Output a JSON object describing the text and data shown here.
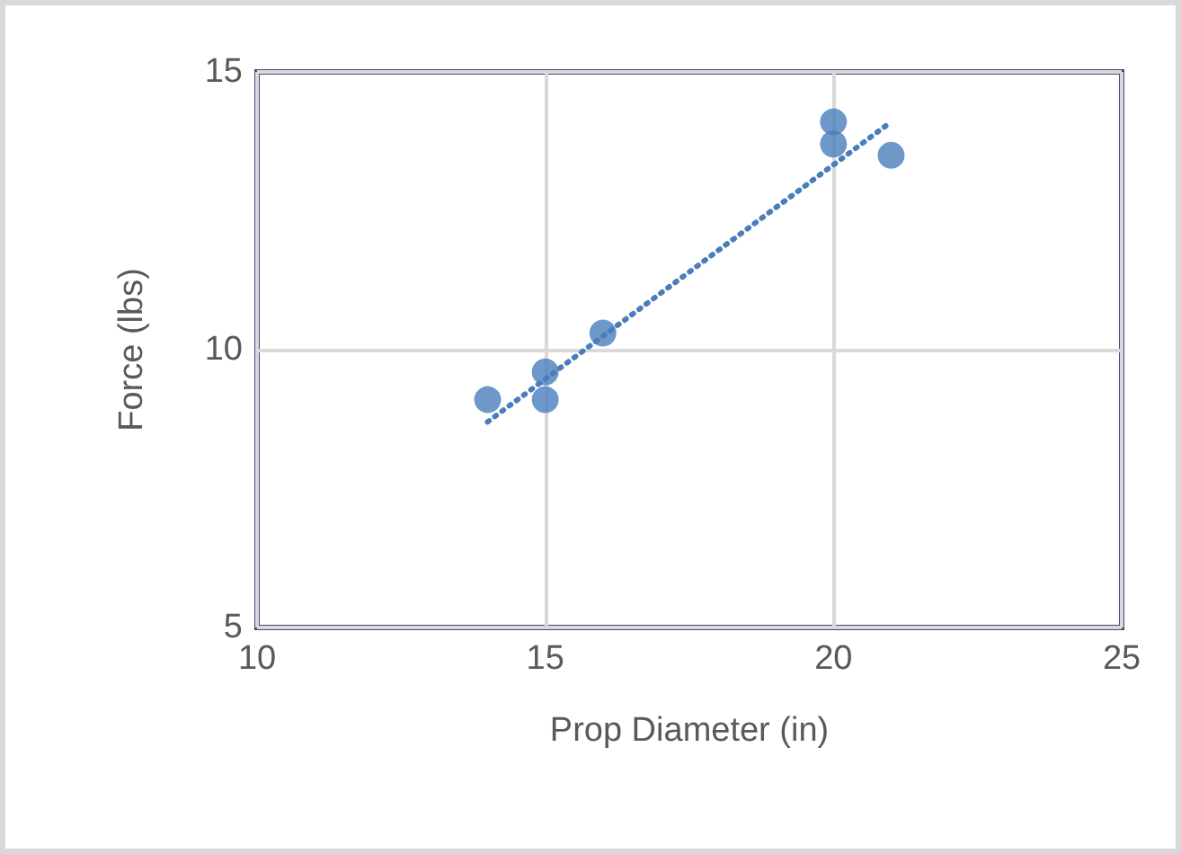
{
  "chart_data": {
    "type": "scatter",
    "xlabel": "Prop Diameter (in)",
    "ylabel": "Force (lbs)",
    "xlim": [
      10,
      25
    ],
    "xticks": [
      10,
      15,
      20,
      25
    ],
    "ylim": [
      5,
      15
    ],
    "yticks": [
      5,
      10,
      15
    ],
    "grid": true,
    "marker": "circle",
    "series": [
      {
        "color": "#4a7ebb",
        "x": [
          14,
          15,
          15,
          16,
          20,
          20,
          21
        ],
        "values": [
          9.1,
          9.6,
          9.1,
          10.3,
          14.1,
          13.7,
          13.5
        ]
      },
      {
        "type": "line",
        "color": "#4a7ebb",
        "line_style": "dotted",
        "marker": "none",
        "x": [
          14,
          21
        ],
        "values": [
          8.7,
          14.1
        ]
      }
    ]
  }
}
